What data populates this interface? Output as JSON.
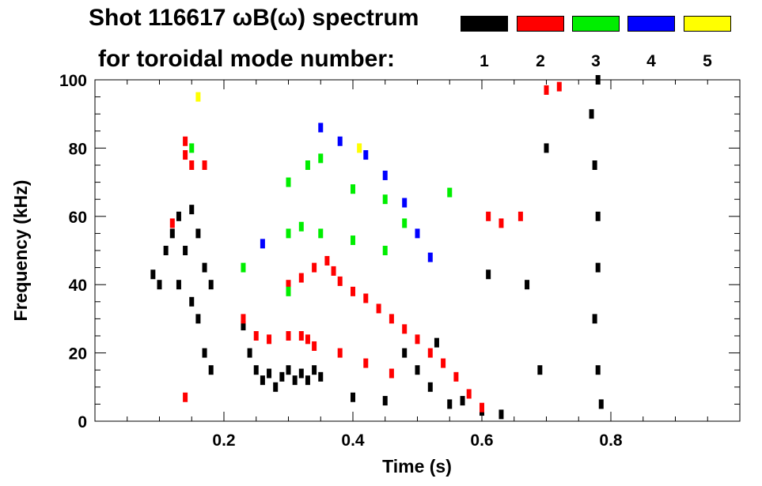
{
  "chart_data": {
    "type": "scatter",
    "title_line1": "Shot 116617 ωB(ω) spectrum",
    "title_line2": "for toroidal mode number:",
    "xlabel": "Time (s)",
    "ylabel": "Frequency (kHz)",
    "xlim": [
      0,
      1.0
    ],
    "ylim": [
      0,
      100
    ],
    "xticks": [
      0.2,
      0.4,
      0.6,
      0.8
    ],
    "xtick_labels": [
      "0.2",
      "0.4",
      "0.6",
      "0.8"
    ],
    "yticks": [
      0,
      20,
      40,
      60,
      80,
      100
    ],
    "ytick_labels": [
      "0",
      "20",
      "40",
      "60",
      "80",
      "100"
    ],
    "legend": [
      {
        "label": "1",
        "color": "#000000"
      },
      {
        "label": "2",
        "color": "#ff0000"
      },
      {
        "label": "3",
        "color": "#00ee00"
      },
      {
        "label": "4",
        "color": "#0000ff"
      },
      {
        "label": "5",
        "color": "#ffff00"
      }
    ],
    "series": [
      {
        "name": "n=1",
        "color": "#000000",
        "points": [
          [
            0.09,
            43
          ],
          [
            0.1,
            40
          ],
          [
            0.11,
            50
          ],
          [
            0.12,
            55
          ],
          [
            0.13,
            60
          ],
          [
            0.14,
            50
          ],
          [
            0.15,
            62
          ],
          [
            0.16,
            55
          ],
          [
            0.17,
            45
          ],
          [
            0.18,
            40
          ],
          [
            0.13,
            40
          ],
          [
            0.15,
            35
          ],
          [
            0.16,
            30
          ],
          [
            0.17,
            20
          ],
          [
            0.18,
            15
          ],
          [
            0.23,
            28
          ],
          [
            0.24,
            20
          ],
          [
            0.25,
            15
          ],
          [
            0.26,
            12
          ],
          [
            0.27,
            14
          ],
          [
            0.28,
            10
          ],
          [
            0.29,
            13
          ],
          [
            0.3,
            15
          ],
          [
            0.31,
            12
          ],
          [
            0.32,
            14
          ],
          [
            0.33,
            12
          ],
          [
            0.34,
            15
          ],
          [
            0.35,
            13
          ],
          [
            0.4,
            7
          ],
          [
            0.45,
            6
          ],
          [
            0.48,
            20
          ],
          [
            0.5,
            15
          ],
          [
            0.52,
            10
          ],
          [
            0.53,
            23
          ],
          [
            0.55,
            5
          ],
          [
            0.57,
            6
          ],
          [
            0.6,
            3
          ],
          [
            0.63,
            2
          ],
          [
            0.61,
            43
          ],
          [
            0.67,
            40
          ],
          [
            0.69,
            15
          ],
          [
            0.7,
            80
          ],
          [
            0.77,
            90
          ],
          [
            0.775,
            75
          ],
          [
            0.78,
            60
          ],
          [
            0.78,
            45
          ],
          [
            0.775,
            30
          ],
          [
            0.78,
            15
          ],
          [
            0.785,
            5
          ],
          [
            0.78,
            100
          ]
        ]
      },
      {
        "name": "n=2",
        "color": "#ff0000",
        "points": [
          [
            0.12,
            58
          ],
          [
            0.14,
            78
          ],
          [
            0.15,
            75
          ],
          [
            0.17,
            75
          ],
          [
            0.14,
            82
          ],
          [
            0.23,
            30
          ],
          [
            0.25,
            25
          ],
          [
            0.27,
            24
          ],
          [
            0.3,
            25
          ],
          [
            0.32,
            25
          ],
          [
            0.33,
            24
          ],
          [
            0.3,
            40
          ],
          [
            0.32,
            42
          ],
          [
            0.34,
            45
          ],
          [
            0.36,
            47
          ],
          [
            0.37,
            44
          ],
          [
            0.38,
            41
          ],
          [
            0.4,
            38
          ],
          [
            0.42,
            36
          ],
          [
            0.44,
            33
          ],
          [
            0.46,
            30
          ],
          [
            0.48,
            27
          ],
          [
            0.5,
            24
          ],
          [
            0.52,
            20
          ],
          [
            0.54,
            17
          ],
          [
            0.56,
            13
          ],
          [
            0.58,
            8
          ],
          [
            0.6,
            4
          ],
          [
            0.34,
            22
          ],
          [
            0.38,
            20
          ],
          [
            0.42,
            17
          ],
          [
            0.46,
            14
          ],
          [
            0.61,
            60
          ],
          [
            0.63,
            58
          ],
          [
            0.66,
            60
          ],
          [
            0.7,
            97
          ],
          [
            0.72,
            98
          ],
          [
            0.14,
            7
          ]
        ]
      },
      {
        "name": "n=3",
        "color": "#00ee00",
        "points": [
          [
            0.15,
            80
          ],
          [
            0.3,
            70
          ],
          [
            0.33,
            75
          ],
          [
            0.35,
            77
          ],
          [
            0.4,
            68
          ],
          [
            0.45,
            65
          ],
          [
            0.48,
            58
          ],
          [
            0.3,
            55
          ],
          [
            0.32,
            57
          ],
          [
            0.35,
            55
          ],
          [
            0.4,
            53
          ],
          [
            0.45,
            50
          ],
          [
            0.23,
            45
          ],
          [
            0.3,
            38
          ],
          [
            0.55,
            67
          ]
        ]
      },
      {
        "name": "n=4",
        "color": "#0000ff",
        "points": [
          [
            0.35,
            86
          ],
          [
            0.38,
            82
          ],
          [
            0.42,
            78
          ],
          [
            0.45,
            72
          ],
          [
            0.48,
            64
          ],
          [
            0.5,
            55
          ],
          [
            0.52,
            48
          ],
          [
            0.26,
            52
          ]
        ]
      },
      {
        "name": "n=5",
        "color": "#ffff00",
        "points": [
          [
            0.16,
            95
          ],
          [
            0.41,
            80
          ]
        ]
      }
    ]
  }
}
